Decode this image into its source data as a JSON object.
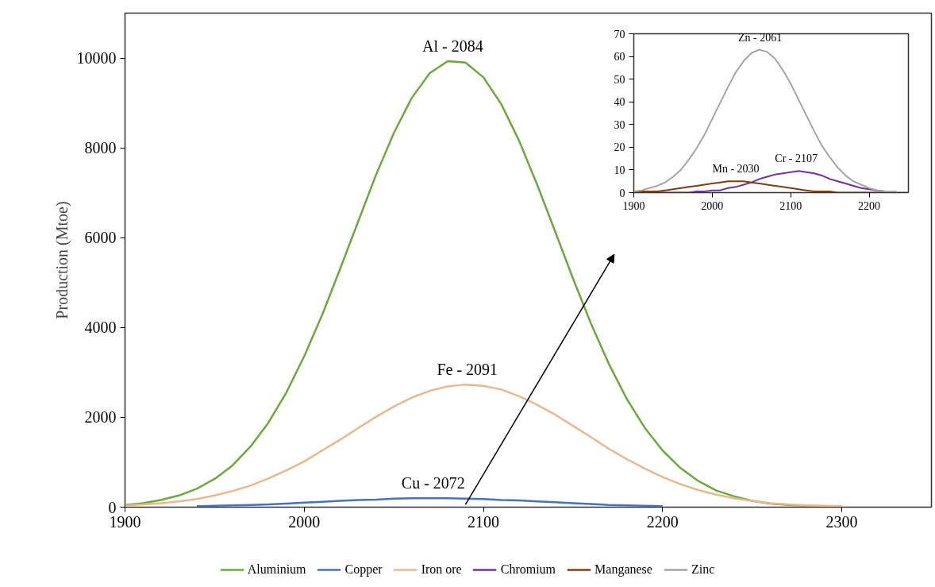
{
  "chart_data": [
    {
      "type": "line",
      "ylabel": "Production (Mtoe)",
      "xlim": [
        1900,
        2350
      ],
      "xticks": [
        1900,
        2000,
        2100,
        2200,
        2300
      ],
      "ylim": [
        0,
        11000
      ],
      "yticks": [
        0,
        2000,
        4000,
        6000,
        8000,
        10000
      ],
      "legend": "bottom",
      "x": [
        1900,
        1910,
        1920,
        1930,
        1940,
        1950,
        1960,
        1970,
        1980,
        1990,
        2000,
        2010,
        2020,
        2030,
        2040,
        2050,
        2060,
        2070,
        2080,
        2090,
        2100,
        2110,
        2120,
        2130,
        2140,
        2150,
        2160,
        2170,
        2180,
        2190,
        2200,
        2210,
        2220,
        2230,
        2240,
        2250,
        2260,
        2270,
        2280,
        2290,
        2300
      ],
      "series": [
        {
          "name": "Aluminium",
          "color": "#6aaa3a",
          "values": [
            50,
            90,
            160,
            260,
            410,
            630,
            930,
            1350,
            1880,
            2550,
            3360,
            4280,
            5300,
            6350,
            7390,
            8330,
            9110,
            9660,
            9930,
            9900,
            9570,
            8970,
            8150,
            7180,
            6140,
            5090,
            4090,
            3190,
            2410,
            1770,
            1260,
            870,
            580,
            370,
            240,
            140,
            80,
            50,
            30,
            20,
            10
          ]
        },
        {
          "name": "Copper",
          "color": "#4472c4",
          "values": [
            null,
            null,
            null,
            null,
            20,
            30,
            40,
            50,
            60,
            80,
            100,
            120,
            140,
            160,
            170,
            190,
            200,
            200,
            200,
            190,
            180,
            160,
            150,
            130,
            110,
            90,
            70,
            50,
            40,
            30,
            20,
            null,
            null,
            null,
            null,
            null,
            null,
            null,
            null,
            null,
            null
          ]
        },
        {
          "name": "Iron ore",
          "color": "#e8b88c",
          "values": [
            40,
            60,
            90,
            130,
            180,
            260,
            360,
            480,
            640,
            820,
            1020,
            1260,
            1500,
            1760,
            2010,
            2240,
            2440,
            2590,
            2690,
            2730,
            2700,
            2620,
            2470,
            2280,
            2060,
            1810,
            1560,
            1300,
            1070,
            860,
            670,
            510,
            380,
            280,
            200,
            140,
            90,
            60,
            40,
            30,
            20
          ]
        }
      ],
      "annotations": [
        {
          "text": "Al -  2084",
          "x": 2084,
          "y": 9930
        },
        {
          "text": "Fe - 2091",
          "x": 2091,
          "y": 2730
        },
        {
          "text": "Cu - 2072",
          "x": 2072,
          "y": 200
        }
      ]
    },
    {
      "type": "line",
      "legend": "bottom",
      "xlim": [
        1900,
        2250
      ],
      "xticks": [
        1900,
        2000,
        2100,
        2200
      ],
      "ylim": [
        0,
        70
      ],
      "yticks": [
        0,
        10,
        20,
        30,
        40,
        50,
        60,
        70
      ],
      "x": [
        1900,
        1910,
        1920,
        1930,
        1940,
        1950,
        1960,
        1970,
        1980,
        1990,
        2000,
        2010,
        2020,
        2030,
        2040,
        2050,
        2060,
        2070,
        2080,
        2090,
        2100,
        2110,
        2120,
        2130,
        2140,
        2150,
        2160,
        2170,
        2180,
        2190,
        2200,
        2210,
        2220,
        2230,
        2240,
        2250
      ],
      "series": [
        {
          "name": "Chromium",
          "color": "#7030a0",
          "values": [
            null,
            null,
            0,
            0,
            0,
            0,
            0,
            0,
            0.5,
            0.5,
            1,
            1,
            2,
            2.5,
            3.5,
            4.5,
            6,
            7,
            8,
            8.5,
            9,
            9.5,
            9,
            8.5,
            7.5,
            6,
            5,
            4,
            3,
            2,
            1.5,
            1,
            0.5,
            0.5,
            0,
            0
          ]
        },
        {
          "name": "Manganese",
          "color": "#843c0c",
          "values": [
            0,
            0.5,
            0.5,
            0.5,
            1,
            1.5,
            2,
            2.5,
            3,
            3.5,
            4,
            4.5,
            5,
            5,
            5,
            4.5,
            4,
            3.5,
            3,
            2.5,
            2,
            1.5,
            1,
            0.5,
            0.5,
            0.5,
            0,
            0,
            0,
            0,
            0,
            0,
            0,
            0,
            null,
            null
          ]
        },
        {
          "name": "Zinc",
          "color": "#a5a5a5",
          "values": [
            0.5,
            1,
            2,
            3,
            4.5,
            7,
            10,
            14.5,
            19.5,
            25.5,
            32.5,
            39.5,
            46.5,
            53,
            58,
            61.5,
            63,
            62,
            59,
            54,
            48,
            41,
            34,
            27,
            20.5,
            15.5,
            11,
            7.5,
            5,
            3.5,
            2,
            1,
            0.5,
            0.5,
            0,
            0
          ]
        }
      ],
      "annotations": [
        {
          "text": "Zn - 2061",
          "x": 2061,
          "y": 63
        },
        {
          "text": "Cr - 2107",
          "x": 2107,
          "y": 9.5
        },
        {
          "text": "Mn - 2030",
          "x": 2030,
          "y": 5
        }
      ]
    }
  ]
}
